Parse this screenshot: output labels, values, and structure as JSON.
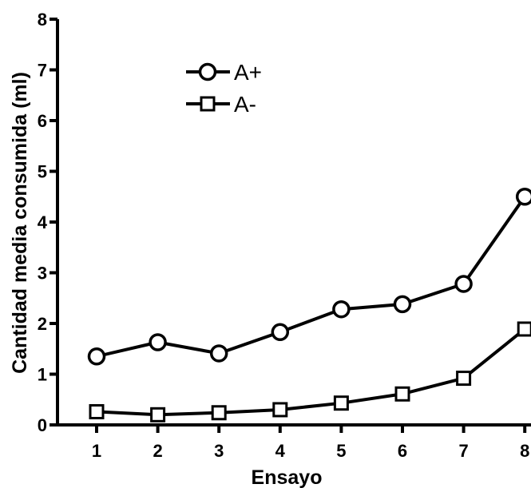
{
  "chart_data": {
    "type": "line",
    "title": "",
    "xlabel": "Ensayo",
    "ylabel": "Cantidad media consumida (ml)",
    "x": [
      1,
      2,
      3,
      4,
      5,
      6,
      7,
      8
    ],
    "xticks": [
      "1",
      "2",
      "3",
      "4",
      "5",
      "6",
      "7",
      "8"
    ],
    "yticks": [
      "0",
      "1",
      "2",
      "3",
      "4",
      "5",
      "6",
      "7",
      "8"
    ],
    "ylim": [
      0,
      8
    ],
    "grid": false,
    "legend_position": "top-left",
    "series": [
      {
        "name": "A+",
        "marker": "circle",
        "color": "#000000",
        "values": [
          1.35,
          1.63,
          1.41,
          1.83,
          2.28,
          2.38,
          2.78,
          4.5
        ]
      },
      {
        "name": "A-",
        "marker": "square",
        "color": "#000000",
        "values": [
          0.26,
          0.2,
          0.24,
          0.3,
          0.43,
          0.61,
          0.92,
          1.89
        ]
      }
    ]
  }
}
